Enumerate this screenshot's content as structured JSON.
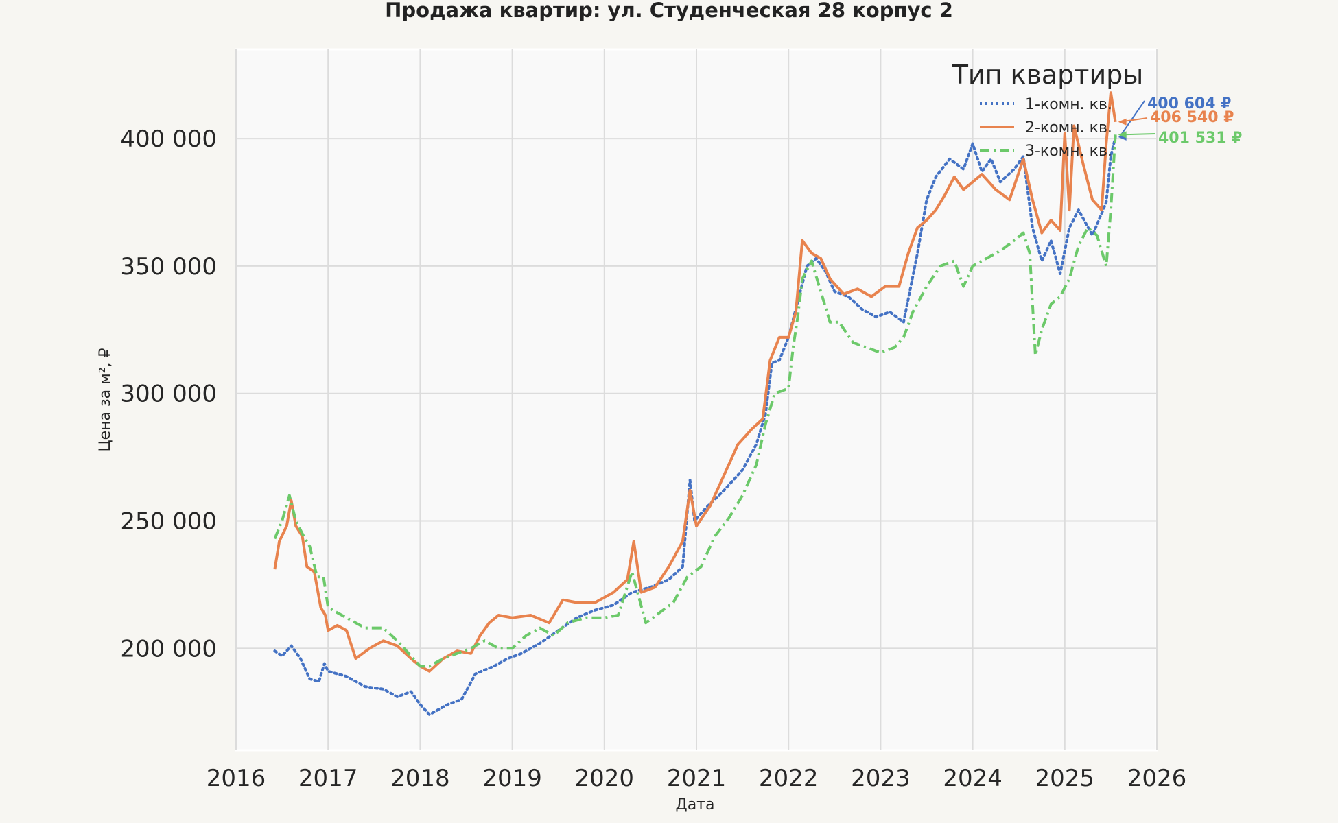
{
  "chart_data": {
    "type": "line",
    "title": "Продажа квартир: ул. Студенческая 28 корпус 2",
    "xlabel": "Дата",
    "ylabel": "Цена за м², ₽",
    "xlim": [
      2016.0,
      2026.0
    ],
    "ylim": [
      160000,
      435000
    ],
    "x_ticks": [
      2016,
      2017,
      2018,
      2019,
      2020,
      2021,
      2022,
      2023,
      2024,
      2025,
      2026
    ],
    "x_tick_labels": [
      "2016",
      "2017",
      "2018",
      "2019",
      "2020",
      "2021",
      "2022",
      "2023",
      "2024",
      "2025",
      "2026"
    ],
    "y_ticks": [
      200000,
      250000,
      300000,
      350000,
      400000
    ],
    "y_tick_labels": [
      "200 000",
      "250 000",
      "300 000",
      "350 000",
      "400 000"
    ],
    "grid": true,
    "legend": {
      "title": "Тип квартиры",
      "position": "top-right"
    },
    "series": [
      {
        "name": "1-комн. кв.",
        "color": "#4472c4",
        "style": "dotted",
        "end_label": "400 604 ₽",
        "end_value": 400604,
        "points": [
          [
            2016.42,
            199000
          ],
          [
            2016.5,
            197000
          ],
          [
            2016.6,
            201000
          ],
          [
            2016.7,
            196000
          ],
          [
            2016.8,
            188000
          ],
          [
            2016.9,
            187000
          ],
          [
            2016.96,
            194000
          ],
          [
            2017.0,
            191000
          ],
          [
            2017.2,
            189000
          ],
          [
            2017.4,
            185000
          ],
          [
            2017.6,
            184000
          ],
          [
            2017.75,
            181000
          ],
          [
            2017.9,
            183000
          ],
          [
            2018.0,
            178000
          ],
          [
            2018.1,
            174000
          ],
          [
            2018.2,
            176000
          ],
          [
            2018.3,
            178000
          ],
          [
            2018.45,
            180000
          ],
          [
            2018.6,
            190000
          ],
          [
            2018.8,
            193000
          ],
          [
            2018.95,
            196000
          ],
          [
            2019.1,
            198000
          ],
          [
            2019.3,
            202000
          ],
          [
            2019.5,
            207000
          ],
          [
            2019.7,
            212000
          ],
          [
            2019.9,
            215000
          ],
          [
            2020.1,
            217000
          ],
          [
            2020.3,
            222000
          ],
          [
            2020.5,
            224000
          ],
          [
            2020.7,
            227000
          ],
          [
            2020.85,
            232000
          ],
          [
            2020.93,
            266000
          ],
          [
            2020.98,
            250000
          ],
          [
            2021.1,
            255000
          ],
          [
            2021.3,
            262000
          ],
          [
            2021.5,
            270000
          ],
          [
            2021.65,
            280000
          ],
          [
            2021.75,
            292000
          ],
          [
            2021.82,
            312000
          ],
          [
            2021.9,
            313000
          ],
          [
            2022.0,
            322000
          ],
          [
            2022.1,
            336000
          ],
          [
            2022.2,
            350000
          ],
          [
            2022.3,
            353000
          ],
          [
            2022.4,
            348000
          ],
          [
            2022.5,
            340000
          ],
          [
            2022.65,
            338000
          ],
          [
            2022.8,
            333000
          ],
          [
            2022.95,
            330000
          ],
          [
            2023.1,
            332000
          ],
          [
            2023.25,
            328000
          ],
          [
            2023.4,
            355000
          ],
          [
            2023.5,
            376000
          ],
          [
            2023.6,
            385000
          ],
          [
            2023.75,
            392000
          ],
          [
            2023.9,
            388000
          ],
          [
            2024.0,
            398000
          ],
          [
            2024.1,
            387000
          ],
          [
            2024.2,
            392000
          ],
          [
            2024.3,
            383000
          ],
          [
            2024.45,
            388000
          ],
          [
            2024.55,
            393000
          ],
          [
            2024.65,
            365000
          ],
          [
            2024.75,
            352000
          ],
          [
            2024.85,
            360000
          ],
          [
            2024.95,
            347000
          ],
          [
            2025.05,
            365000
          ],
          [
            2025.15,
            372000
          ],
          [
            2025.3,
            362000
          ],
          [
            2025.45,
            375000
          ],
          [
            2025.5,
            393000
          ],
          [
            2025.55,
            400604
          ]
        ]
      },
      {
        "name": "2-комн. кв.",
        "color": "#e8834e",
        "style": "solid",
        "end_label": "406 540 ₽",
        "end_value": 406540,
        "points": [
          [
            2016.42,
            231000
          ],
          [
            2016.47,
            242000
          ],
          [
            2016.55,
            248000
          ],
          [
            2016.6,
            258000
          ],
          [
            2016.65,
            248000
          ],
          [
            2016.72,
            244000
          ],
          [
            2016.77,
            232000
          ],
          [
            2016.85,
            230000
          ],
          [
            2016.92,
            216000
          ],
          [
            2016.97,
            213000
          ],
          [
            2017.0,
            207000
          ],
          [
            2017.1,
            209000
          ],
          [
            2017.2,
            207000
          ],
          [
            2017.3,
            196000
          ],
          [
            2017.45,
            200000
          ],
          [
            2017.6,
            203000
          ],
          [
            2017.75,
            201000
          ],
          [
            2017.9,
            196000
          ],
          [
            2018.0,
            193000
          ],
          [
            2018.1,
            191000
          ],
          [
            2018.25,
            196000
          ],
          [
            2018.4,
            199000
          ],
          [
            2018.55,
            198000
          ],
          [
            2018.65,
            205000
          ],
          [
            2018.75,
            210000
          ],
          [
            2018.85,
            213000
          ],
          [
            2019.0,
            212000
          ],
          [
            2019.2,
            213000
          ],
          [
            2019.4,
            210000
          ],
          [
            2019.55,
            219000
          ],
          [
            2019.7,
            218000
          ],
          [
            2019.9,
            218000
          ],
          [
            2020.1,
            222000
          ],
          [
            2020.25,
            227000
          ],
          [
            2020.32,
            242000
          ],
          [
            2020.4,
            222000
          ],
          [
            2020.55,
            224000
          ],
          [
            2020.7,
            232000
          ],
          [
            2020.85,
            242000
          ],
          [
            2020.93,
            262000
          ],
          [
            2021.0,
            248000
          ],
          [
            2021.15,
            256000
          ],
          [
            2021.3,
            268000
          ],
          [
            2021.45,
            280000
          ],
          [
            2021.6,
            286000
          ],
          [
            2021.72,
            290000
          ],
          [
            2021.8,
            313000
          ],
          [
            2021.9,
            322000
          ],
          [
            2022.0,
            322000
          ],
          [
            2022.08,
            332000
          ],
          [
            2022.15,
            360000
          ],
          [
            2022.25,
            355000
          ],
          [
            2022.35,
            353000
          ],
          [
            2022.45,
            345000
          ],
          [
            2022.6,
            339000
          ],
          [
            2022.75,
            341000
          ],
          [
            2022.9,
            338000
          ],
          [
            2023.05,
            342000
          ],
          [
            2023.2,
            342000
          ],
          [
            2023.3,
            355000
          ],
          [
            2023.4,
            365000
          ],
          [
            2023.5,
            368000
          ],
          [
            2023.6,
            372000
          ],
          [
            2023.7,
            378000
          ],
          [
            2023.8,
            385000
          ],
          [
            2023.9,
            380000
          ],
          [
            2024.0,
            383000
          ],
          [
            2024.1,
            386000
          ],
          [
            2024.25,
            380000
          ],
          [
            2024.4,
            376000
          ],
          [
            2024.55,
            392000
          ],
          [
            2024.65,
            376000
          ],
          [
            2024.75,
            363000
          ],
          [
            2024.85,
            368000
          ],
          [
            2024.95,
            364000
          ],
          [
            2025.0,
            402000
          ],
          [
            2025.05,
            372000
          ],
          [
            2025.1,
            405000
          ],
          [
            2025.2,
            390000
          ],
          [
            2025.3,
            376000
          ],
          [
            2025.4,
            372000
          ],
          [
            2025.45,
            398000
          ],
          [
            2025.5,
            418000
          ],
          [
            2025.55,
            406540
          ]
        ]
      },
      {
        "name": "3-комн. кв.",
        "color": "#6cc96a",
        "style": "dashdot",
        "end_label": "401 531 ₽",
        "end_value": 401531,
        "points": [
          [
            2016.42,
            243000
          ],
          [
            2016.5,
            250000
          ],
          [
            2016.58,
            260000
          ],
          [
            2016.65,
            250000
          ],
          [
            2016.72,
            245000
          ],
          [
            2016.8,
            240000
          ],
          [
            2016.88,
            228000
          ],
          [
            2016.95,
            228000
          ],
          [
            2017.0,
            216000
          ],
          [
            2017.2,
            212000
          ],
          [
            2017.4,
            208000
          ],
          [
            2017.6,
            208000
          ],
          [
            2017.75,
            203000
          ],
          [
            2017.9,
            197000
          ],
          [
            2018.0,
            193000
          ],
          [
            2018.1,
            193000
          ],
          [
            2018.25,
            196000
          ],
          [
            2018.4,
            198000
          ],
          [
            2018.55,
            200000
          ],
          [
            2018.7,
            203000
          ],
          [
            2018.85,
            200000
          ],
          [
            2019.0,
            200000
          ],
          [
            2019.15,
            205000
          ],
          [
            2019.3,
            208000
          ],
          [
            2019.45,
            205000
          ],
          [
            2019.6,
            210000
          ],
          [
            2019.8,
            212000
          ],
          [
            2020.0,
            212000
          ],
          [
            2020.15,
            213000
          ],
          [
            2020.3,
            230000
          ],
          [
            2020.45,
            210000
          ],
          [
            2020.6,
            214000
          ],
          [
            2020.75,
            218000
          ],
          [
            2020.9,
            228000
          ],
          [
            2021.05,
            232000
          ],
          [
            2021.2,
            244000
          ],
          [
            2021.35,
            251000
          ],
          [
            2021.5,
            260000
          ],
          [
            2021.65,
            272000
          ],
          [
            2021.75,
            288000
          ],
          [
            2021.85,
            300000
          ],
          [
            2022.0,
            302000
          ],
          [
            2022.05,
            318000
          ],
          [
            2022.1,
            330000
          ],
          [
            2022.15,
            345000
          ],
          [
            2022.25,
            352000
          ],
          [
            2022.35,
            340000
          ],
          [
            2022.45,
            328000
          ],
          [
            2022.55,
            328000
          ],
          [
            2022.7,
            320000
          ],
          [
            2022.85,
            318000
          ],
          [
            2023.0,
            316000
          ],
          [
            2023.15,
            318000
          ],
          [
            2023.25,
            322000
          ],
          [
            2023.35,
            332000
          ],
          [
            2023.5,
            342000
          ],
          [
            2023.65,
            350000
          ],
          [
            2023.8,
            352000
          ],
          [
            2023.9,
            342000
          ],
          [
            2024.0,
            350000
          ],
          [
            2024.15,
            353000
          ],
          [
            2024.3,
            356000
          ],
          [
            2024.45,
            360000
          ],
          [
            2024.55,
            363000
          ],
          [
            2024.62,
            355000
          ],
          [
            2024.68,
            315000
          ],
          [
            2024.75,
            325000
          ],
          [
            2024.85,
            335000
          ],
          [
            2024.95,
            338000
          ],
          [
            2025.05,
            345000
          ],
          [
            2025.15,
            358000
          ],
          [
            2025.25,
            365000
          ],
          [
            2025.35,
            362000
          ],
          [
            2025.45,
            350000
          ],
          [
            2025.5,
            372000
          ],
          [
            2025.55,
            401531
          ]
        ]
      }
    ]
  }
}
